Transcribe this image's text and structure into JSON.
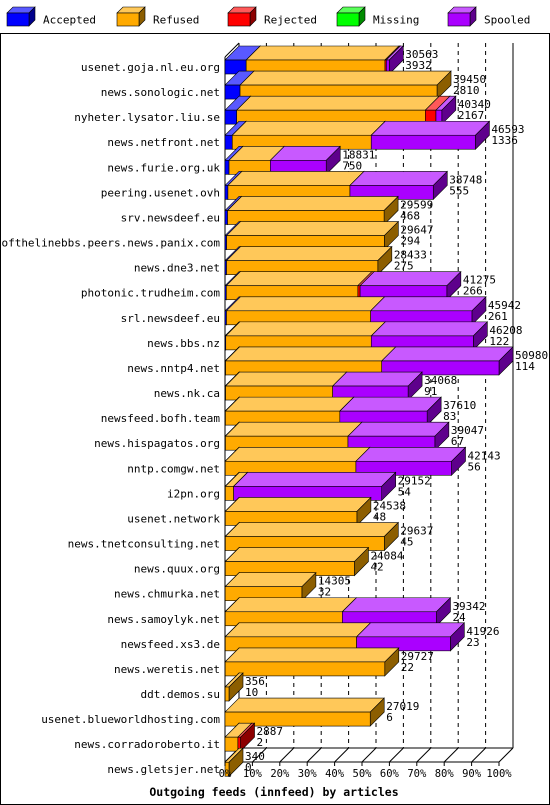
{
  "colors": {
    "accepted": "#0000ff",
    "refused": "#ffaa00",
    "rejected": "#ff0000",
    "missing": "#00ff00",
    "spooled": "#aa00ff",
    "background": "#ffffff",
    "axis": "#000000"
  },
  "chart_data": {
    "type": "bar",
    "orientation": "horizontal",
    "stacked": true,
    "title": "",
    "xlabel": "Outgoing feeds (innfeed) by articles",
    "ylabel": "",
    "xlim": [
      0,
      100
    ],
    "x_unit": "%",
    "x_ticks": [
      "0%",
      "10%",
      "20%",
      "30%",
      "40%",
      "50%",
      "60%",
      "70%",
      "80%",
      "90%",
      "100%"
    ],
    "grid": "vertical dashed",
    "legend_position": "top",
    "legend": [
      {
        "key": "accepted",
        "label": "Accepted"
      },
      {
        "key": "refused",
        "label": "Refused"
      },
      {
        "key": "rejected",
        "label": "Rejected"
      },
      {
        "key": "missing",
        "label": "Missing"
      },
      {
        "key": "spooled",
        "label": "Spooled"
      }
    ],
    "categories": [
      "usenet.goja.nl.eu.org",
      "news.sonologic.net",
      "nyheter.lysator.liu.se",
      "news.netfront.net",
      "news.furie.org.uk",
      "peering.usenet.ovh",
      "srv.newsdeef.eu",
      "endofthelinebbs.peers.news.panix.com",
      "news.dne3.net",
      "photonic.trudheim.com",
      "srl.newsdeef.eu",
      "news.bbs.nz",
      "news.nntp4.net",
      "news.nk.ca",
      "newsfeed.bofh.team",
      "news.hispagatos.org",
      "nntp.comgw.net",
      "i2pn.org",
      "usenet.network",
      "news.tnetconsulting.net",
      "news.quux.org",
      "news.chmurka.net",
      "news.samoylyk.net",
      "newsfeed.xs3.de",
      "news.weretis.net",
      "ddt.demos.su",
      "usenet.blueworldhosting.com",
      "news.corradoroberto.it",
      "news.gletsjer.net"
    ],
    "offered": [
      "30563",
      "39450",
      "40340",
      "46593",
      "18831",
      "38748",
      "29599",
      "29647",
      "28433",
      "41275",
      "45942",
      "46208",
      "50980",
      "34068",
      "37610",
      "39047",
      "42143",
      "29152",
      "24538",
      "29637",
      "24084",
      "14305",
      "39342",
      "41926",
      "29727",
      "356",
      "27019",
      "2887",
      "340"
    ],
    "accepted_count": [
      "3932",
      "2810",
      "2167",
      "1336",
      "750",
      "555",
      "468",
      "294",
      "275",
      "266",
      "261",
      "122",
      "114",
      "91",
      "83",
      "67",
      "56",
      "54",
      "48",
      "45",
      "42",
      "32",
      "24",
      "23",
      "22",
      "10",
      "6",
      "2",
      "0"
    ],
    "series": [
      {
        "name": "Accepted",
        "key": "accepted",
        "values": [
          12.9,
          7.1,
          5.4,
          2.9,
          4.0,
          1.4,
          1.6,
          1.0,
          1.0,
          0.6,
          0.6,
          0.3,
          0.2,
          0.3,
          0.2,
          0.2,
          0.1,
          0.2,
          0.2,
          0.2,
          0.2,
          0.2,
          0.1,
          0.1,
          0.1,
          2.8,
          0.0,
          0.1,
          0.0
        ]
      },
      {
        "name": "Refused",
        "key": "refused",
        "values": [
          84.5,
          92.9,
          87.0,
          55.5,
          40.8,
          58.6,
          98.4,
          99.0,
          99.0,
          59.3,
          58.4,
          58.6,
          57.0,
          58.5,
          56.6,
          58.4,
          57.7,
          5.3,
          99.8,
          99.8,
          99.8,
          99.8,
          55.4,
          58.3,
          99.9,
          97.2,
          100.0,
          83.0,
          100.0
        ]
      },
      {
        "name": "Rejected",
        "key": "rejected",
        "values": [
          0.8,
          0.0,
          4.9,
          0.0,
          0.0,
          0.0,
          0.0,
          0.0,
          0.0,
          1.0,
          0.0,
          0.0,
          0.0,
          0.0,
          0.0,
          0.0,
          0.0,
          0.0,
          0.0,
          0.0,
          0.0,
          0.0,
          0.0,
          0.0,
          0.0,
          0.0,
          0.0,
          16.9,
          0.0
        ]
      },
      {
        "name": "Missing",
        "key": "missing",
        "values": [
          0,
          0,
          0,
          0,
          0,
          0,
          0,
          0,
          0,
          0,
          0,
          0,
          0,
          0,
          0,
          0,
          0,
          0,
          0,
          0,
          0,
          0,
          0,
          0,
          0,
          0,
          0,
          0,
          0
        ]
      },
      {
        "name": "Spooled",
        "key": "spooled",
        "values": [
          1.8,
          0.0,
          2.7,
          41.6,
          55.2,
          40.0,
          0.0,
          0.0,
          0.0,
          39.1,
          41.0,
          41.1,
          42.8,
          41.2,
          43.2,
          41.4,
          42.2,
          94.5,
          0.0,
          0.0,
          0.0,
          0.0,
          44.5,
          41.6,
          0.0,
          0.0,
          0.0,
          0.0,
          0.0
        ]
      }
    ],
    "bar_scale_relative_to_max_offered": true
  }
}
